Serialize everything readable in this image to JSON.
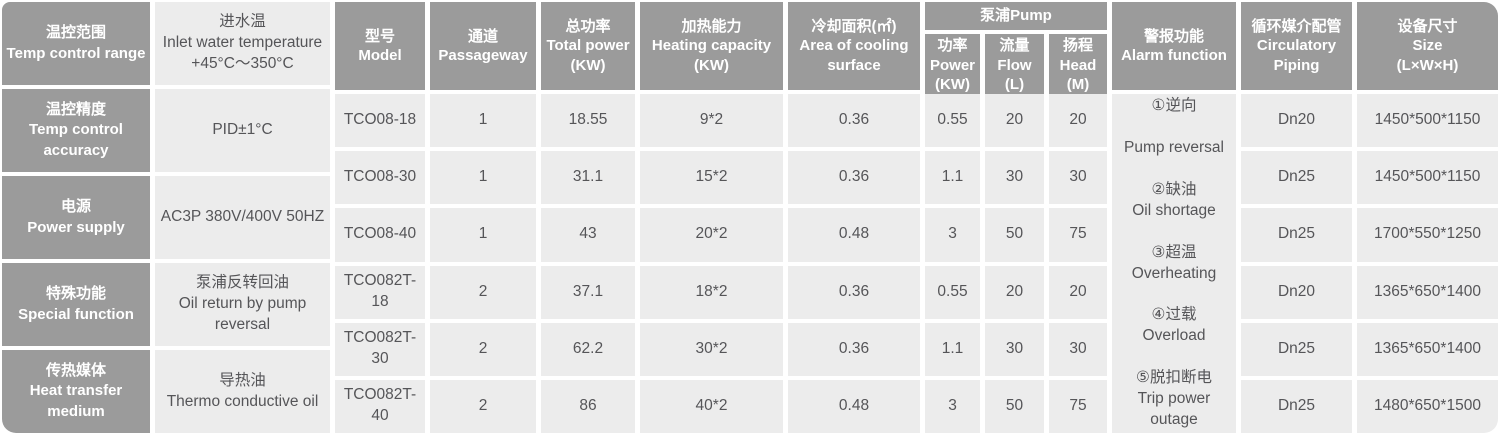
{
  "colors": {
    "header_bg": "#9b9b9b",
    "cell_bg": "#ececec",
    "cell_text": "#555558",
    "header_text": "#ffffff",
    "page_bg": "#ffffff"
  },
  "left_panel": {
    "rows": [
      {
        "label": [
          "温控范围",
          "Temp control range"
        ],
        "value": [
          "进水温",
          "Inlet water temperature",
          "+45°C～350°C"
        ]
      },
      {
        "label": [
          "温控精度",
          "Temp control accuracy"
        ],
        "value": [
          "PID±1°C"
        ]
      },
      {
        "label": [
          "电源",
          "Power supply"
        ],
        "value": [
          "AC3P 380V/400V 50HZ"
        ]
      },
      {
        "label": [
          "特殊功能",
          "Special function"
        ],
        "value": [
          "泵浦反转回油",
          "Oil return by pump reversal"
        ]
      },
      {
        "label": [
          "传热媒体",
          "Heat transfer medium"
        ],
        "value": [
          "导热油",
          "Thermo conductive oil"
        ]
      }
    ]
  },
  "spec_table": {
    "headers": {
      "model": [
        "型号",
        "Model"
      ],
      "passageway": [
        "通道",
        "Passageway"
      ],
      "total_power": [
        "总功率",
        "Total power",
        "(KW)"
      ],
      "heating_capacity": [
        "加热能力",
        "Heating capacity",
        "(KW)"
      ],
      "cooling_area": [
        "冷却面积(㎡)",
        "Area of cooling surface"
      ],
      "pump_group": "泵浦Pump",
      "pump_power": [
        "功率",
        "Power",
        "(KW)"
      ],
      "pump_flow": [
        "流量",
        "Flow",
        "(L)"
      ],
      "pump_head": [
        "扬程",
        "Head",
        "(M)"
      ],
      "alarm": [
        "警报功能",
        "Alarm function"
      ],
      "piping": [
        "循环媒介配管",
        "Circulatory",
        "Piping"
      ],
      "size": [
        "设备尺寸",
        "Size",
        "(L×W×H)"
      ]
    },
    "rows": [
      {
        "model": "TCO08-18",
        "passageway": "1",
        "total_power": "18.55",
        "heating_capacity": "9*2",
        "cooling_area": "0.36",
        "pump_power": "0.55",
        "pump_flow": "20",
        "pump_head": "20",
        "piping": "Dn20",
        "size": "1450*500*1150"
      },
      {
        "model": "TCO08-30",
        "passageway": "1",
        "total_power": "31.1",
        "heating_capacity": "15*2",
        "cooling_area": "0.36",
        "pump_power": "1.1",
        "pump_flow": "30",
        "pump_head": "30",
        "piping": "Dn25",
        "size": "1450*500*1150"
      },
      {
        "model": "TCO08-40",
        "passageway": "1",
        "total_power": "43",
        "heating_capacity": "20*2",
        "cooling_area": "0.48",
        "pump_power": "3",
        "pump_flow": "50",
        "pump_head": "75",
        "piping": "Dn25",
        "size": "1700*550*1250"
      },
      {
        "model": "TCO082T-18",
        "passageway": "2",
        "total_power": "37.1",
        "heating_capacity": "18*2",
        "cooling_area": "0.36",
        "pump_power": "0.55",
        "pump_flow": "20",
        "pump_head": "20",
        "piping": "Dn20",
        "size": "1365*650*1400"
      },
      {
        "model": "TCO082T-30",
        "passageway": "2",
        "total_power": "62.2",
        "heating_capacity": "30*2",
        "cooling_area": "0.36",
        "pump_power": "1.1",
        "pump_flow": "30",
        "pump_head": "30",
        "piping": "Dn25",
        "size": "1365*650*1400"
      },
      {
        "model": "TCO082T-40",
        "passageway": "2",
        "total_power": "86",
        "heating_capacity": "40*2",
        "cooling_area": "0.48",
        "pump_power": "3",
        "pump_flow": "50",
        "pump_head": "75",
        "piping": "Dn25",
        "size": "1480*650*1500"
      }
    ],
    "alarm_cell": [
      "①逆向",
      "",
      "Pump reversal",
      "",
      "②缺油",
      "Oil shortage",
      "",
      "③超温",
      "Overheating",
      "",
      "④过载",
      "Overload",
      "",
      "⑤脱扣断电",
      "Trip power outage"
    ]
  }
}
